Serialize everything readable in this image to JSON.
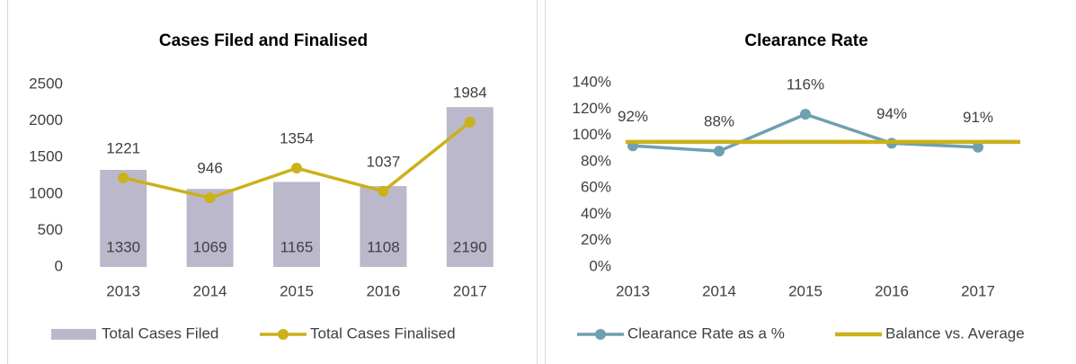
{
  "chart_data": [
    {
      "type": "bar",
      "title": "Cases Filed and Finalised",
      "categories": [
        "2013",
        "2014",
        "2015",
        "2016",
        "2017"
      ],
      "series": [
        {
          "name": "Total Cases Filed",
          "type": "bar",
          "color": "#bcb8cb",
          "values": [
            1330,
            1069,
            1165,
            1108,
            2190
          ]
        },
        {
          "name": "Total Cases Finalised",
          "type": "line",
          "color": "#cbb11a",
          "markers": true,
          "values": [
            1221,
            946,
            1354,
            1037,
            1984
          ]
        }
      ],
      "ylim": [
        0,
        2500
      ],
      "yticks": [
        0,
        500,
        1000,
        1500,
        2000,
        2500
      ],
      "grid": false,
      "legend": "bottom"
    },
    {
      "type": "line",
      "title": "Clearance Rate",
      "categories": [
        "2013",
        "2014",
        "2015",
        "2016",
        "2017"
      ],
      "series": [
        {
          "name": "Clearance Rate as a %",
          "type": "line",
          "color": "#6f9fb1",
          "markers": true,
          "values": [
            92,
            88,
            116,
            94,
            91
          ],
          "value_labels": [
            "92%",
            "88%",
            "116%",
            "94%",
            "91%"
          ]
        },
        {
          "name": "Balance vs. Average",
          "type": "line",
          "color": "#cbb11a",
          "markers": false,
          "values": [
            95,
            95,
            95,
            95,
            95
          ]
        }
      ],
      "ylim": [
        0,
        140
      ],
      "yticks": [
        {
          "value": 0,
          "label": "0%"
        },
        {
          "value": 20,
          "label": "20%"
        },
        {
          "value": 40,
          "label": "40%"
        },
        {
          "value": 60,
          "label": "60%"
        },
        {
          "value": 80,
          "label": "80%"
        },
        {
          "value": 100,
          "label": "100%"
        },
        {
          "value": 120,
          "label": "120%"
        },
        {
          "value": 140,
          "label": "140%"
        }
      ],
      "grid": false,
      "legend": "bottom"
    }
  ]
}
